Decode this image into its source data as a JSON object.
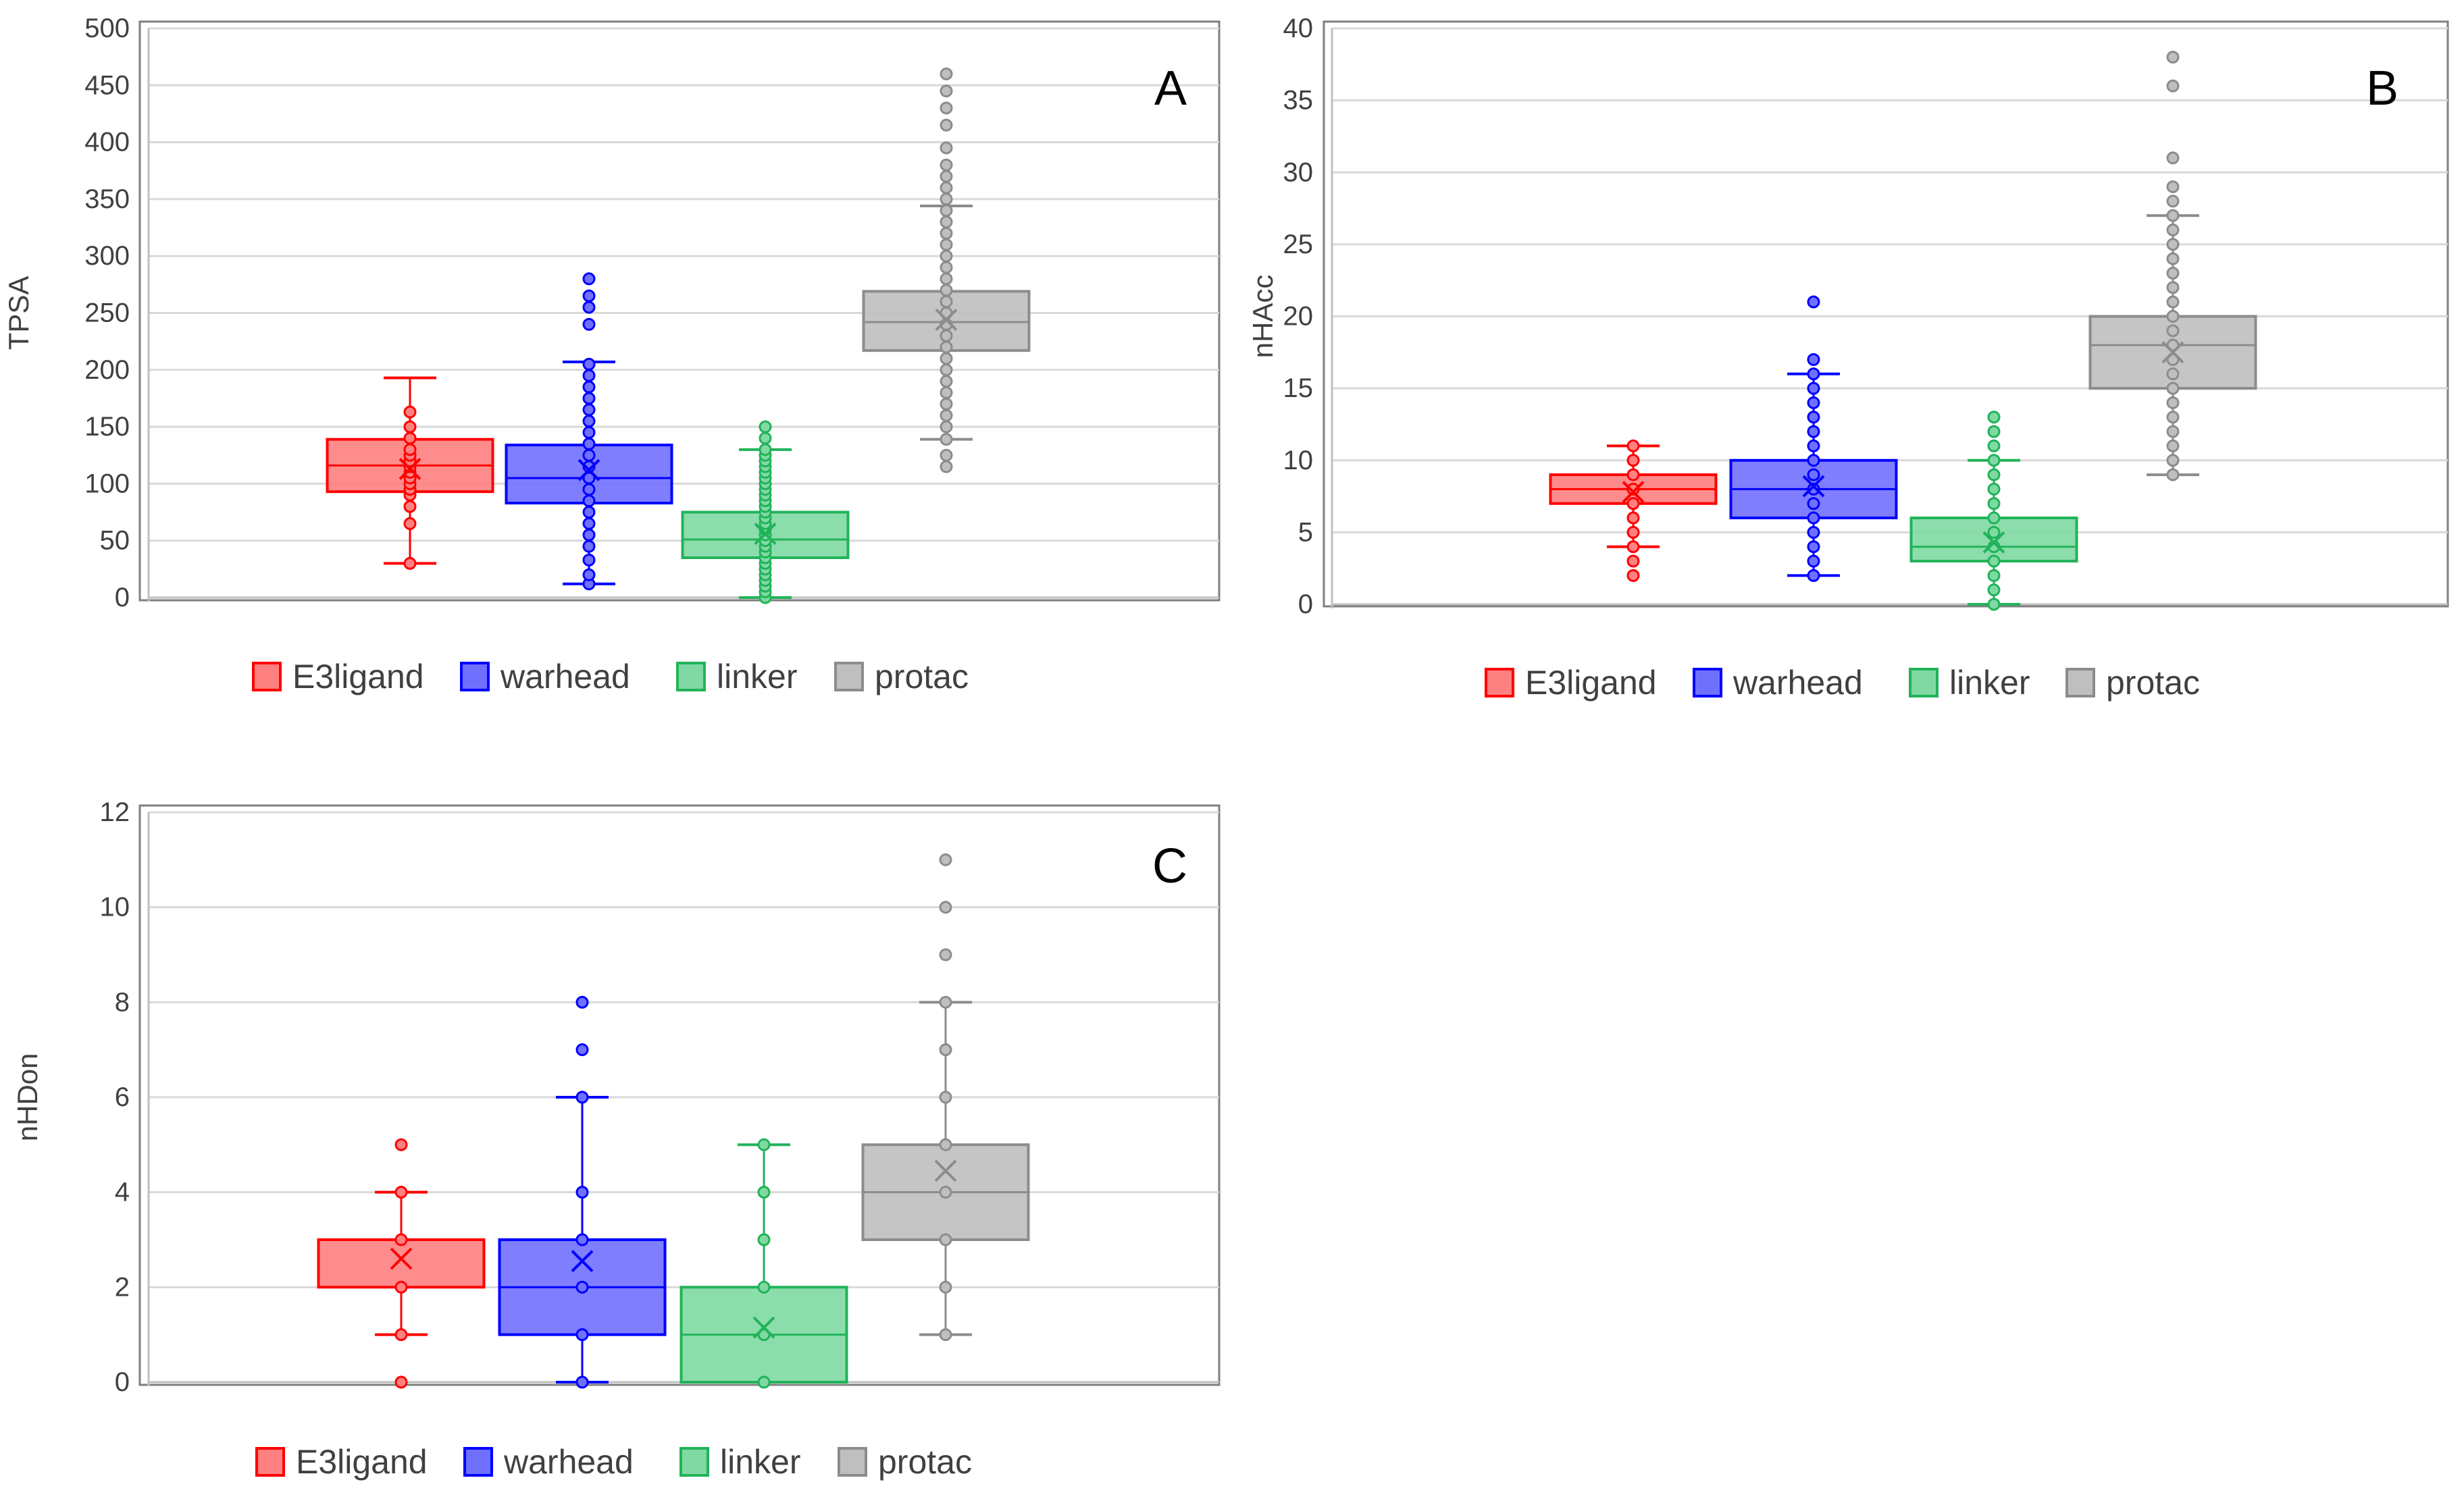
{
  "legend": {
    "items": [
      {
        "name": "E3ligand",
        "color": "#ff0000",
        "fill": "#ff8080"
      },
      {
        "name": "warhead",
        "color": "#0000ff",
        "fill": "#7070ff"
      },
      {
        "name": "linker",
        "color": "#21b359",
        "fill": "#80d9a3"
      },
      {
        "name": "protac",
        "color": "#8c8c8c",
        "fill": "#bfbfbf"
      }
    ]
  },
  "chart_data": [
    {
      "type": "box",
      "panel_label": "A",
      "ylabel": "TPSA",
      "ylim": [
        0,
        500
      ],
      "yticks": [
        0,
        50,
        100,
        150,
        200,
        250,
        300,
        350,
        400,
        450,
        500
      ],
      "grid": true,
      "legend_position": "bottom",
      "series": [
        {
          "name": "E3ligand",
          "whisker_low": 30,
          "q1": 93,
          "median": 116,
          "q3": 139,
          "whisker_high": 193,
          "mean": 113,
          "points": [
            30,
            65,
            80,
            90,
            95,
            100,
            105,
            110,
            115,
            120,
            125,
            130,
            140,
            150,
            163
          ]
        },
        {
          "name": "warhead",
          "whisker_low": 12,
          "q1": 83,
          "median": 105,
          "q3": 134,
          "whisker_high": 207,
          "mean": 112,
          "points": [
            12,
            20,
            33,
            45,
            55,
            65,
            75,
            85,
            95,
            105,
            115,
            125,
            135,
            145,
            155,
            165,
            175,
            185,
            195,
            205,
            240,
            255,
            265,
            280
          ]
        },
        {
          "name": "linker",
          "whisker_low": 0,
          "q1": 35,
          "median": 51,
          "q3": 75,
          "whisker_high": 130,
          "mean": 56,
          "points": [
            0,
            5,
            10,
            15,
            20,
            25,
            30,
            35,
            40,
            45,
            50,
            55,
            60,
            65,
            70,
            75,
            80,
            85,
            90,
            95,
            100,
            105,
            110,
            115,
            120,
            125,
            130,
            140,
            150
          ]
        },
        {
          "name": "protac",
          "whisker_low": 139,
          "q1": 217,
          "median": 242,
          "q3": 269,
          "whisker_high": 344,
          "mean": 244,
          "points": [
            115,
            125,
            139,
            150,
            160,
            170,
            180,
            190,
            200,
            210,
            220,
            230,
            240,
            250,
            260,
            270,
            280,
            290,
            300,
            310,
            320,
            330,
            340,
            350,
            360,
            370,
            380,
            395,
            415,
            430,
            445,
            460
          ]
        }
      ]
    },
    {
      "type": "box",
      "panel_label": "B",
      "ylabel": "nHAcc",
      "ylim": [
        0,
        40
      ],
      "yticks": [
        0,
        5,
        10,
        15,
        20,
        25,
        30,
        35,
        40
      ],
      "grid": true,
      "legend_position": "bottom",
      "series": [
        {
          "name": "E3ligand",
          "whisker_low": 4,
          "q1": 7,
          "median": 8,
          "q3": 9,
          "whisker_high": 11,
          "mean": 7.8,
          "points": [
            2,
            3,
            4,
            5,
            6,
            7,
            8,
            9,
            10,
            11
          ]
        },
        {
          "name": "warhead",
          "whisker_low": 2,
          "q1": 6,
          "median": 8,
          "q3": 10,
          "whisker_high": 16,
          "mean": 8.2,
          "points": [
            2,
            3,
            4,
            5,
            6,
            7,
            8,
            9,
            10,
            11,
            12,
            13,
            14,
            15,
            16,
            17,
            21
          ]
        },
        {
          "name": "linker",
          "whisker_low": 0,
          "q1": 3,
          "median": 4,
          "q3": 6,
          "whisker_high": 10,
          "mean": 4.3,
          "points": [
            0,
            1,
            2,
            3,
            4,
            5,
            6,
            7,
            8,
            9,
            10,
            11,
            12,
            13
          ]
        },
        {
          "name": "protac",
          "whisker_low": 9,
          "q1": 15,
          "median": 18,
          "q3": 20,
          "whisker_high": 27,
          "mean": 17.5,
          "points": [
            9,
            10,
            11,
            12,
            13,
            14,
            15,
            16,
            17,
            18,
            19,
            20,
            21,
            22,
            23,
            24,
            25,
            26,
            27,
            28,
            29,
            31,
            36,
            38
          ]
        }
      ]
    },
    {
      "type": "box",
      "panel_label": "C",
      "ylabel": "nHDon",
      "ylim": [
        0,
        12
      ],
      "yticks": [
        0,
        2,
        4,
        6,
        8,
        10,
        12
      ],
      "grid": true,
      "legend_position": "bottom",
      "series": [
        {
          "name": "E3ligand",
          "whisker_low": 1,
          "q1": 2,
          "median": 2,
          "q3": 3,
          "whisker_high": 4,
          "mean": 2.6,
          "points": [
            0,
            1,
            2,
            3,
            4,
            5
          ]
        },
        {
          "name": "warhead",
          "whisker_low": 0,
          "q1": 1,
          "median": 2,
          "q3": 3,
          "whisker_high": 6,
          "mean": 2.55,
          "points": [
            0,
            1,
            2,
            3,
            4,
            6,
            7,
            8
          ]
        },
        {
          "name": "linker",
          "whisker_low": 0,
          "q1": 0,
          "median": 1,
          "q3": 2,
          "whisker_high": 5,
          "mean": 1.15,
          "points": [
            0,
            1,
            2,
            3,
            4,
            5
          ]
        },
        {
          "name": "protac",
          "whisker_low": 1,
          "q1": 3,
          "median": 4,
          "q3": 5,
          "whisker_high": 8,
          "mean": 4.45,
          "points": [
            1,
            2,
            3,
            4,
            5,
            6,
            7,
            8,
            9,
            10,
            11
          ]
        }
      ]
    }
  ]
}
